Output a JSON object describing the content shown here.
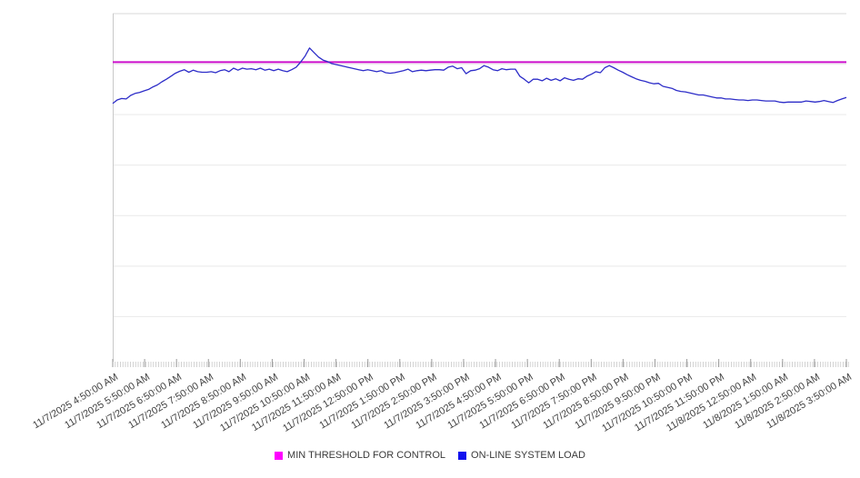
{
  "chart_data": {
    "type": "line",
    "x_axis": {
      "start_label": "11/7/2025 4:50:00 AM",
      "end_label": "11/8/2025 3:50:00 AM",
      "tick_labels": [
        "11/7/2025 4:50:00 AM",
        "11/7/2025 5:50:00 AM",
        "11/7/2025 6:50:00 AM",
        "11/7/2025 7:50:00 AM",
        "11/7/2025 8:50:00 AM",
        "11/7/2025 9:50:00 AM",
        "11/7/2025 10:50:00 AM",
        "11/7/2025 11:50:00 AM",
        "11/7/2025 12:50:00 PM",
        "11/7/2025 1:50:00 PM",
        "11/7/2025 2:50:00 PM",
        "11/7/2025 3:50:00 PM",
        "11/7/2025 4:50:00 PM",
        "11/7/2025 5:50:00 PM",
        "11/7/2025 6:50:00 PM",
        "11/7/2025 7:50:00 PM",
        "11/7/2025 8:50:00 PM",
        "11/7/2025 9:50:00 PM",
        "11/7/2025 10:50:00 PM",
        "11/7/2025 11:50:00 PM",
        "11/8/2025 12:50:00 AM",
        "11/8/2025 1:50:00 AM",
        "11/8/2025 2:50:00 AM",
        "11/8/2025 3:50:00 AM"
      ],
      "minor_ticks_per_hour": 12
    },
    "y_axis": {
      "labels_visible": false,
      "unit": "gridline-units (no y-axis labels shown in image)",
      "ylim": [
        0,
        7
      ],
      "gridlines_at": [
        1,
        2,
        3,
        4,
        5,
        6,
        7
      ]
    },
    "series": [
      {
        "name": "MIN THRESHOLD FOR CONTROL",
        "style": "horizontal-threshold-line",
        "line_color": "#cb0fcb",
        "value": 6.04
      },
      {
        "name": "ON-LINE SYSTEM LOAD",
        "style": "line",
        "line_color": "#2d2dc8",
        "values": [
          5.22,
          5.29,
          5.32,
          5.31,
          5.38,
          5.42,
          5.44,
          5.47,
          5.5,
          5.55,
          5.59,
          5.65,
          5.7,
          5.76,
          5.82,
          5.86,
          5.89,
          5.84,
          5.88,
          5.85,
          5.84,
          5.84,
          5.85,
          5.83,
          5.87,
          5.89,
          5.85,
          5.92,
          5.88,
          5.92,
          5.9,
          5.91,
          5.89,
          5.92,
          5.88,
          5.9,
          5.87,
          5.9,
          5.87,
          5.85,
          5.89,
          5.94,
          6.04,
          6.16,
          6.32,
          6.23,
          6.14,
          6.08,
          6.05,
          6.01,
          5.99,
          5.97,
          5.95,
          5.93,
          5.91,
          5.89,
          5.87,
          5.89,
          5.87,
          5.85,
          5.87,
          5.83,
          5.82,
          5.83,
          5.85,
          5.87,
          5.9,
          5.85,
          5.87,
          5.88,
          5.87,
          5.88,
          5.89,
          5.89,
          5.88,
          5.94,
          5.96,
          5.91,
          5.93,
          5.81,
          5.87,
          5.88,
          5.91,
          5.97,
          5.94,
          5.89,
          5.87,
          5.91,
          5.89,
          5.9,
          5.9,
          5.76,
          5.7,
          5.63,
          5.7,
          5.7,
          5.67,
          5.72,
          5.68,
          5.71,
          5.67,
          5.73,
          5.7,
          5.68,
          5.71,
          5.7,
          5.76,
          5.8,
          5.85,
          5.83,
          5.93,
          5.97,
          5.93,
          5.88,
          5.84,
          5.79,
          5.75,
          5.71,
          5.68,
          5.66,
          5.63,
          5.61,
          5.62,
          5.56,
          5.54,
          5.52,
          5.48,
          5.46,
          5.45,
          5.43,
          5.41,
          5.39,
          5.39,
          5.37,
          5.35,
          5.33,
          5.33,
          5.31,
          5.31,
          5.3,
          5.29,
          5.29,
          5.28,
          5.29,
          5.29,
          5.28,
          5.27,
          5.27,
          5.27,
          5.25,
          5.24,
          5.25,
          5.25,
          5.25,
          5.25,
          5.27,
          5.26,
          5.25,
          5.26,
          5.28,
          5.26,
          5.24,
          5.28,
          5.31,
          5.34
        ]
      }
    ],
    "legend": {
      "position": "bottom-center",
      "items": [
        {
          "label": "MIN THRESHOLD FOR CONTROL",
          "swatch_color": "#ff00ff"
        },
        {
          "label": "ON-LINE SYSTEM LOAD",
          "swatch_color": "#1111ee"
        }
      ]
    },
    "colors": {
      "background": "#ffffff",
      "gridline": "#e9e9e9",
      "plot_top_border": "#dadada",
      "y_axis_line": "#c9c9c9",
      "minor_tick": "#bfbfbf",
      "major_tick": "#9a9a9a",
      "axis_label_text": "#3f3f3f",
      "legend_text": "#3a3a3a"
    }
  }
}
